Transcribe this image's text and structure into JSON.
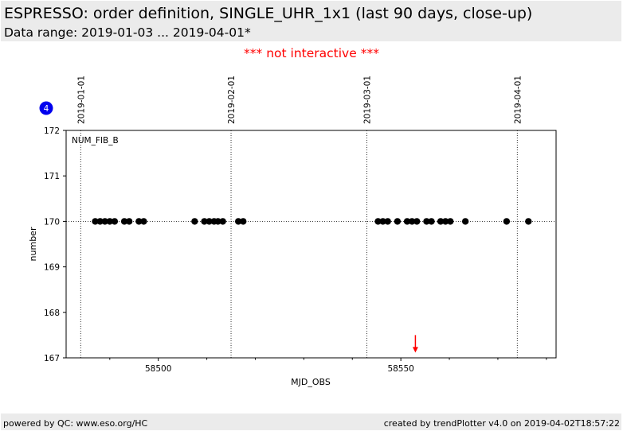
{
  "header": {
    "title": "ESPRESSO: order definition, SINGLE_UHR_1x1 (last 90 days, close-up)",
    "subtitle": "Data range: 2019-01-03 ... 2019-04-01*"
  },
  "notice": "*** not interactive ***",
  "badge": {
    "label": "4",
    "color": "#0000ee"
  },
  "footer": {
    "left": "powered by QC: www.eso.org/HC",
    "right": "created by trendPlotter v4.0 on 2019-04-02T18:57:22"
  },
  "chart_data": {
    "type": "scatter",
    "xlabel": "MJD_OBS",
    "ylabel": "number",
    "xlim": [
      58481,
      58582
    ],
    "ylim": [
      167,
      172
    ],
    "xticks": [
      58500,
      58550
    ],
    "xticks_minor": [
      58490,
      58510,
      58520,
      58530,
      58540,
      58560,
      58570,
      58580
    ],
    "yticks": [
      167,
      168,
      169,
      170,
      171,
      172
    ],
    "grid": false,
    "annotation": "NUM_FIB_B",
    "reference_line": {
      "y": 170,
      "style": "dotted"
    },
    "date_markers": [
      {
        "x": 58484,
        "label": "2019-01-01"
      },
      {
        "x": 58515,
        "label": "2019-02-01"
      },
      {
        "x": 58543,
        "label": "2019-03-01"
      },
      {
        "x": 58574,
        "label": "2019-04-01"
      }
    ],
    "points_color": "#000000",
    "series": [
      {
        "x": [
          58487.0,
          58488.0,
          58489.0,
          58490.0,
          58491.0,
          58493.0,
          58494.0,
          58496.0,
          58497.0,
          58507.5,
          58509.5,
          58510.5,
          58511.5,
          58512.3,
          58513.3,
          58516.5,
          58517.5,
          58545.3,
          58546.3,
          58547.3,
          58549.3,
          58551.3,
          58552.3,
          58553.3,
          58555.3,
          58556.3,
          58558.2,
          58559.2,
          58560.2,
          58563.3,
          58571.8,
          58576.3
        ],
        "y": [
          170,
          170,
          170,
          170,
          170,
          170,
          170,
          170,
          170,
          170,
          170,
          170,
          170,
          170,
          170,
          170,
          170,
          170,
          170,
          170,
          170,
          170,
          170,
          170,
          170,
          170,
          170,
          170,
          170,
          170,
          170,
          170
        ]
      }
    ],
    "marker_arrow": {
      "x": 58553,
      "y_from": 167.5,
      "y_to": 167.15,
      "color": "#ff0000"
    }
  }
}
